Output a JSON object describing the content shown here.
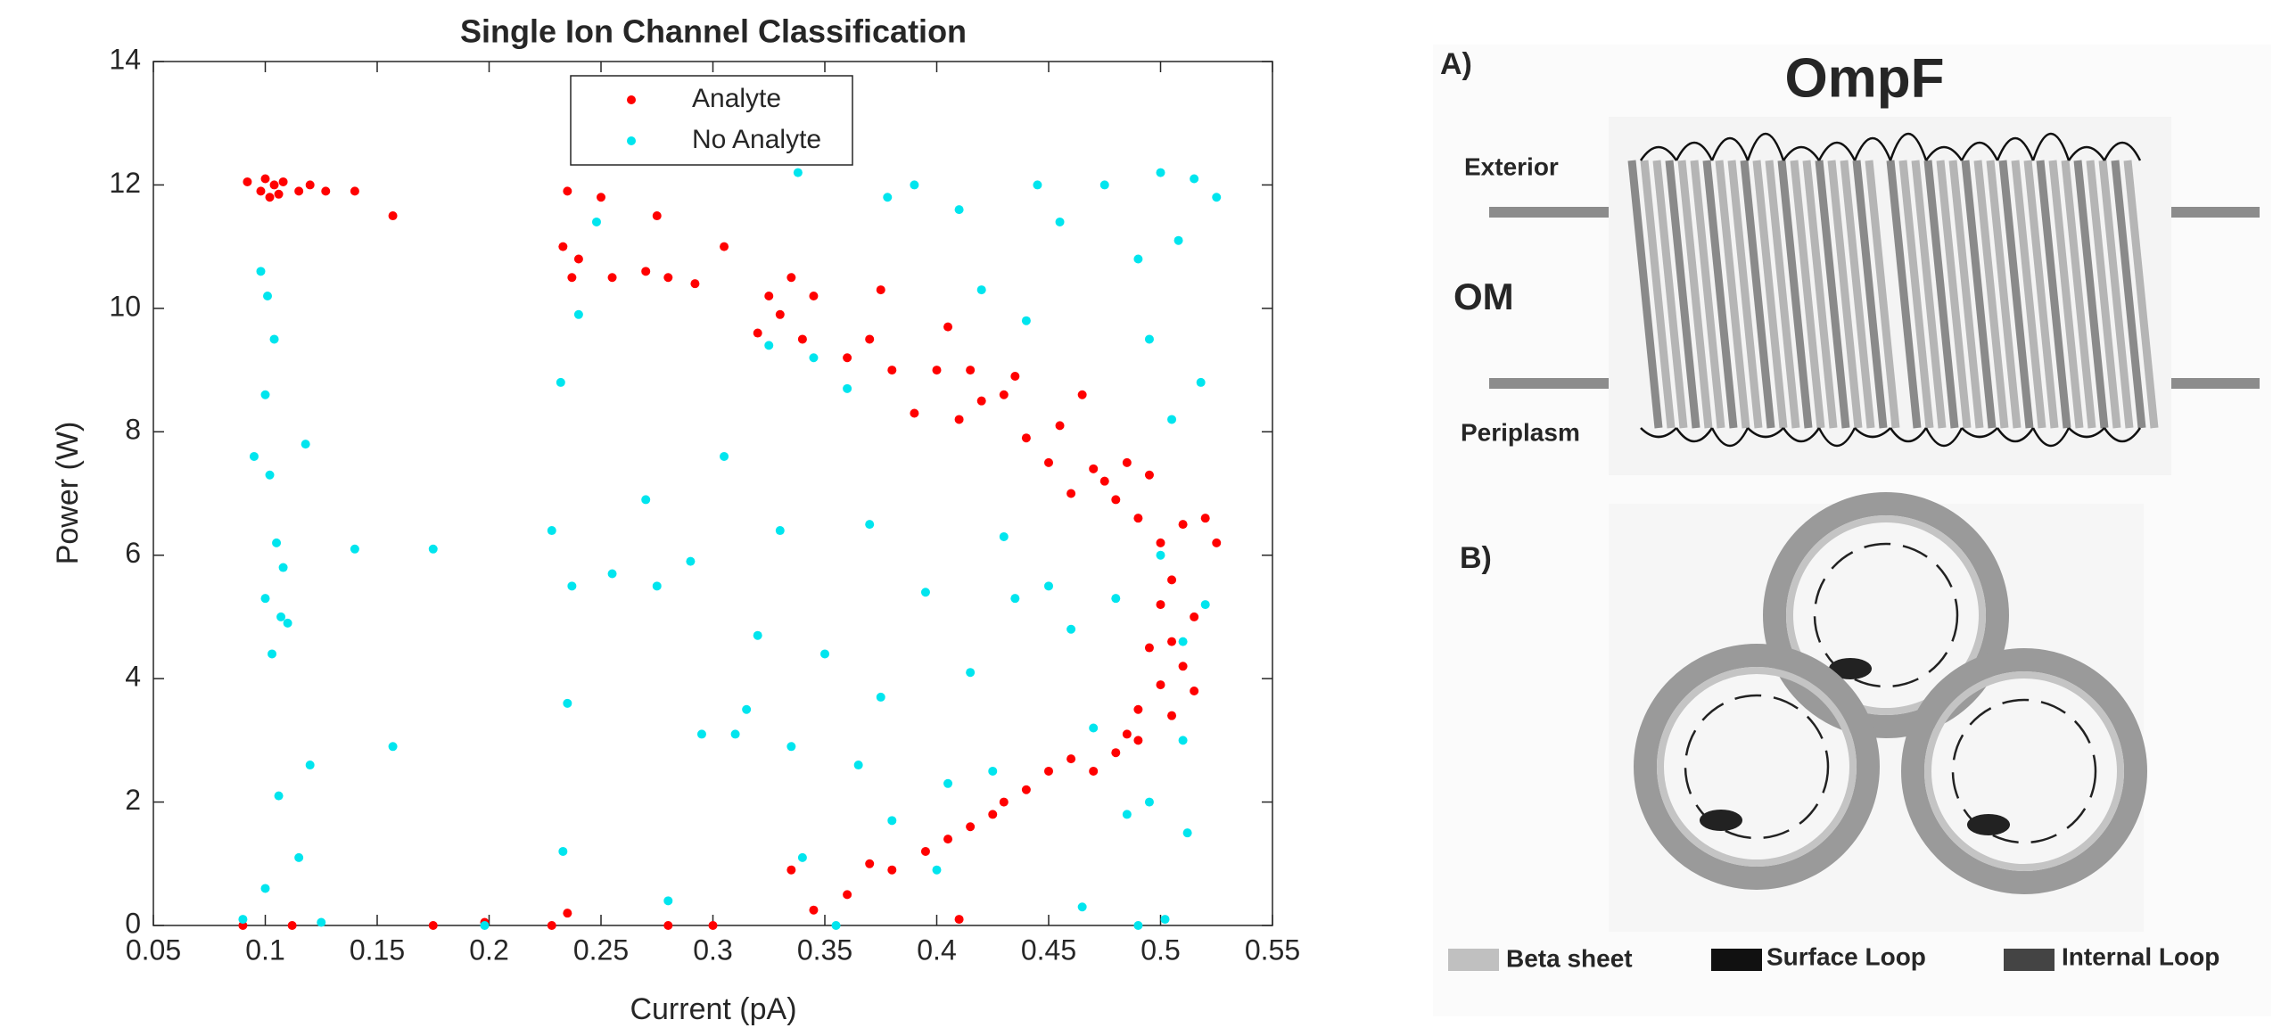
{
  "chart_data": {
    "type": "scatter",
    "title": "Single Ion Channel Classification",
    "x_label": "Current (pA)",
    "y_label": "Power (W)",
    "xlim": [
      0.05,
      0.55
    ],
    "xticks": [
      0.05,
      0.1,
      0.15,
      0.2,
      0.25,
      0.3,
      0.35,
      0.4,
      0.45,
      0.5,
      0.55
    ],
    "ylim": [
      0,
      14
    ],
    "yticks": [
      0,
      2,
      4,
      6,
      8,
      10,
      12,
      14
    ],
    "legend": "top",
    "series": [
      {
        "name": "Analyte",
        "color": "#ff0000",
        "x": [
          0.092,
          0.098,
          0.1,
          0.102,
          0.104,
          0.106,
          0.108,
          0.115,
          0.12,
          0.127,
          0.14,
          0.157,
          0.233,
          0.235,
          0.237,
          0.24,
          0.25,
          0.255,
          0.27,
          0.275,
          0.28,
          0.292,
          0.305,
          0.32,
          0.325,
          0.33,
          0.335,
          0.34,
          0.345,
          0.36,
          0.37,
          0.375,
          0.38,
          0.39,
          0.4,
          0.405,
          0.41,
          0.415,
          0.42,
          0.43,
          0.435,
          0.44,
          0.45,
          0.455,
          0.46,
          0.465,
          0.47,
          0.475,
          0.48,
          0.485,
          0.49,
          0.495,
          0.5,
          0.505,
          0.51,
          0.515,
          0.52,
          0.525,
          0.5,
          0.505,
          0.51,
          0.5,
          0.495,
          0.515,
          0.505,
          0.49,
          0.485,
          0.48,
          0.49,
          0.47,
          0.46,
          0.45,
          0.44,
          0.43,
          0.425,
          0.415,
          0.405,
          0.395,
          0.38,
          0.37,
          0.36,
          0.345,
          0.335,
          0.09,
          0.112,
          0.175,
          0.198,
          0.228,
          0.235,
          0.28,
          0.3,
          0.41
        ],
        "values": [
          12.05,
          11.9,
          12.1,
          11.8,
          12.0,
          11.85,
          12.05,
          11.9,
          12.0,
          11.9,
          11.9,
          11.5,
          11.0,
          11.9,
          10.5,
          10.8,
          11.8,
          10.5,
          10.6,
          11.5,
          10.5,
          10.4,
          11.0,
          9.6,
          10.2,
          9.9,
          10.5,
          9.5,
          10.2,
          9.2,
          9.5,
          10.3,
          9.0,
          8.3,
          9.0,
          9.7,
          8.2,
          9.0,
          8.5,
          8.6,
          8.9,
          7.9,
          7.5,
          8.1,
          7.0,
          8.6,
          7.4,
          7.2,
          6.9,
          7.5,
          6.6,
          7.3,
          6.2,
          5.6,
          6.5,
          5.0,
          6.6,
          6.2,
          5.2,
          4.6,
          4.2,
          3.9,
          4.5,
          3.8,
          3.4,
          3.5,
          3.1,
          2.8,
          3.0,
          2.5,
          2.7,
          2.5,
          2.2,
          2.0,
          1.8,
          1.6,
          1.4,
          1.2,
          0.9,
          1.0,
          0.5,
          0.25,
          0.9,
          0,
          0,
          0,
          0.05,
          0,
          0.2,
          0,
          0,
          0.1
        ]
      },
      {
        "name": "No Analyte",
        "color": "#00e5ee",
        "x": [
          0.09,
          0.095,
          0.098,
          0.1,
          0.1,
          0.101,
          0.102,
          0.103,
          0.104,
          0.105,
          0.106,
          0.107,
          0.108,
          0.11,
          0.1,
          0.115,
          0.118,
          0.12,
          0.125,
          0.14,
          0.157,
          0.175,
          0.198,
          0.228,
          0.232,
          0.233,
          0.235,
          0.237,
          0.24,
          0.248,
          0.255,
          0.27,
          0.275,
          0.28,
          0.29,
          0.295,
          0.305,
          0.31,
          0.315,
          0.32,
          0.325,
          0.33,
          0.335,
          0.338,
          0.34,
          0.345,
          0.35,
          0.355,
          0.36,
          0.365,
          0.37,
          0.375,
          0.378,
          0.38,
          0.39,
          0.395,
          0.4,
          0.405,
          0.41,
          0.415,
          0.42,
          0.425,
          0.43,
          0.435,
          0.44,
          0.445,
          0.45,
          0.455,
          0.46,
          0.465,
          0.47,
          0.475,
          0.48,
          0.485,
          0.49,
          0.495,
          0.5,
          0.502,
          0.505,
          0.508,
          0.51,
          0.512,
          0.515,
          0.518,
          0.52,
          0.525,
          0.49,
          0.5,
          0.51,
          0.495
        ],
        "values": [
          0.1,
          7.6,
          10.6,
          8.6,
          5.3,
          10.2,
          7.3,
          4.4,
          9.5,
          6.2,
          2.1,
          5.0,
          5.8,
          4.9,
          0.6,
          1.1,
          7.8,
          2.6,
          0.05,
          6.1,
          2.9,
          6.1,
          0,
          6.4,
          8.8,
          1.2,
          3.6,
          5.5,
          9.9,
          11.4,
          5.7,
          6.9,
          5.5,
          0.4,
          5.9,
          3.1,
          7.6,
          3.1,
          3.5,
          4.7,
          9.4,
          6.4,
          2.9,
          12.2,
          1.1,
          9.2,
          4.4,
          0,
          8.7,
          2.6,
          6.5,
          3.7,
          11.8,
          1.7,
          12.0,
          5.4,
          0.9,
          2.3,
          11.6,
          4.1,
          10.3,
          2.5,
          6.3,
          5.3,
          9.8,
          12.0,
          5.5,
          11.4,
          4.8,
          0.3,
          3.2,
          12.0,
          5.3,
          1.8,
          10.8,
          9.5,
          12.2,
          0.1,
          8.2,
          11.1,
          3.0,
          1.5,
          12.1,
          8.8,
          5.2,
          11.8,
          0,
          6.0,
          4.6,
          2.0
        ]
      }
    ]
  },
  "figure": {
    "panel_a": {
      "label": "A)",
      "title": "OmpF",
      "exterior": "Exterior",
      "om": "OM",
      "periplasm": "Periplasm"
    },
    "panel_b": {
      "label": "B)"
    },
    "legend": [
      "Beta sheet",
      "Surface Loop",
      "Internal Loop"
    ]
  }
}
